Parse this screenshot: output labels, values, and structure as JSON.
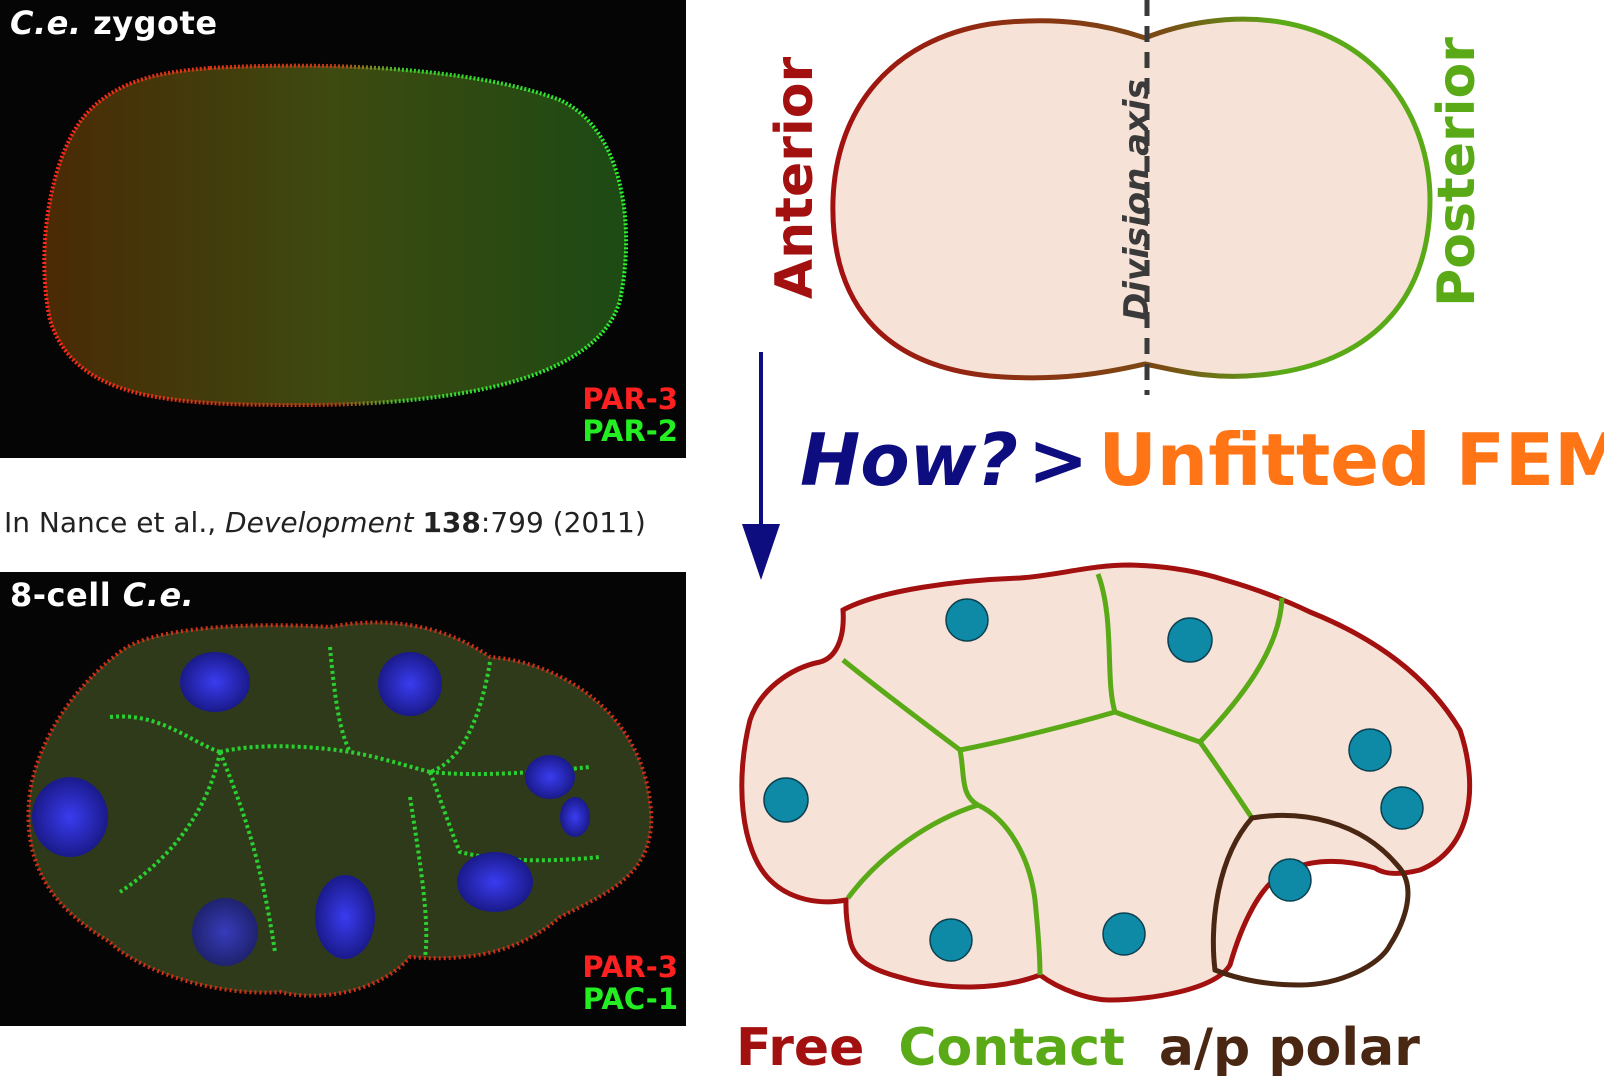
{
  "top_panel": {
    "title_italic": "C.e.",
    "title_rest": " zygote",
    "legend": [
      {
        "label": "PAR-3",
        "color": "#ff2020"
      },
      {
        "label": "PAR-2",
        "color": "#22ee22"
      }
    ]
  },
  "citation": {
    "prefix": "In Nance et al., ",
    "journal": "Development",
    "volume": "138",
    "rest": ":799 (2011)"
  },
  "bottom_panel": {
    "title_rest": "8-cell ",
    "title_italic": "C.e.",
    "legend": [
      {
        "label": "PAR-3",
        "color": "#ff2020"
      },
      {
        "label": "PAC-1",
        "color": "#22ee22"
      }
    ]
  },
  "zygote_diagram": {
    "anterior_label": "Anterior",
    "posterior_label": "Posterior",
    "axis_label": "Division axis",
    "anterior_color": "#a31010",
    "posterior_color": "#5aaa18",
    "fill_color": "#f6e2d6"
  },
  "method": {
    "question": "How?",
    "arrow": ">",
    "answer": "Unfitted FEM",
    "question_color": "#0d0d80",
    "answer_color": "#ff7414"
  },
  "embryo_legend": {
    "free": "Free",
    "contact": "Contact",
    "polar": "a/p polar",
    "free_color": "#a31010",
    "contact_color": "#5aaa18",
    "polar_color": "#4a2712",
    "nucleus_color": "#0e8aa6"
  }
}
